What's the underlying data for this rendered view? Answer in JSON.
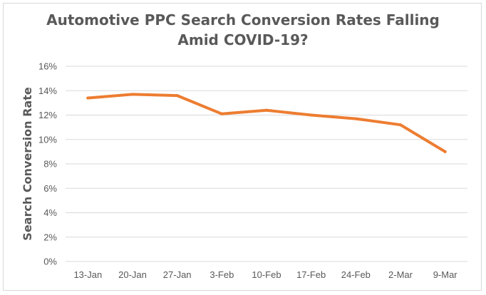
{
  "chart_data": {
    "type": "line",
    "title_lines": [
      "Automotive PPC Search Conversion Rates Falling",
      "Amid COVID-19?"
    ],
    "xlabel": "",
    "ylabel": "Search Conversion Rate",
    "categories": [
      "13-Jan",
      "20-Jan",
      "27-Jan",
      "3-Feb",
      "10-Feb",
      "17-Feb",
      "24-Feb",
      "2-Mar",
      "9-Mar"
    ],
    "series": [
      {
        "values": [
          13.4,
          13.7,
          13.6,
          12.1,
          12.4,
          12.0,
          11.7,
          11.2,
          9.0
        ],
        "color": "#ED7D31"
      }
    ],
    "yticks": [
      "0%",
      "2%",
      "4%",
      "6%",
      "8%",
      "10%",
      "12%",
      "14%",
      "16%"
    ],
    "ylim": [
      0,
      16
    ],
    "ystep": 2,
    "grid": true,
    "legend": "none",
    "colors": {
      "gridline": "#d9d9d9",
      "text": "#595959"
    }
  }
}
